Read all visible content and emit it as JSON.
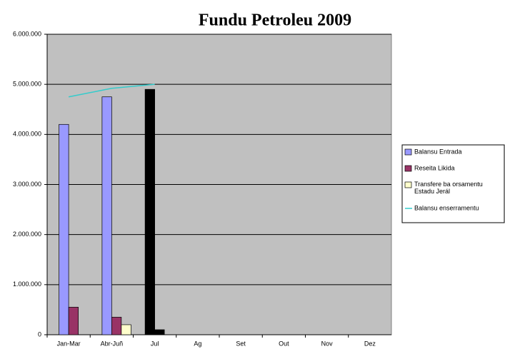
{
  "chart_data": {
    "type": "bar",
    "title": "Fundu Petroleu 2009",
    "categories": [
      "Jan-Mar",
      "Abr-Juñ",
      "Jul",
      "Ag",
      "Set",
      "Out",
      "Nov",
      "Dez"
    ],
    "series": [
      {
        "name": "Balansu Entrada",
        "color": "#9999ff",
        "colors": [
          "#9999ff",
          "#9999ff",
          "#000000",
          "#9999ff",
          "#9999ff",
          "#9999ff",
          "#9999ff",
          "#9999ff"
        ],
        "values": [
          4200000,
          4750000,
          4900000,
          null,
          null,
          null,
          null,
          null
        ]
      },
      {
        "name": "Reseita Likida",
        "color": "#993366",
        "colors": [
          "#993366",
          "#993366",
          "#000000",
          "#993366",
          "#993366",
          "#993366",
          "#993366",
          "#993366"
        ],
        "values": [
          550000,
          350000,
          100000,
          null,
          null,
          null,
          null,
          null
        ]
      },
      {
        "name": "Transfere ba orsamentu Estadu Jerál",
        "color": "#ffffcc",
        "colors": [
          "#ffffcc",
          "#ffffcc",
          "#ffffcc",
          "#ffffcc",
          "#ffffcc",
          "#ffffcc",
          "#ffffcc",
          "#ffffcc"
        ],
        "values": [
          0,
          200000,
          0,
          null,
          null,
          null,
          null,
          null
        ]
      },
      {
        "name": "Balansu enserramentu",
        "type": "line",
        "color": "#33cccc",
        "values": [
          4750000,
          4920000,
          5000000,
          null,
          null,
          null,
          null,
          null
        ]
      }
    ],
    "ylim": [
      0,
      6000000
    ],
    "yticks": [
      0,
      {
        "value": 1000000,
        "label": "1.000.000"
      },
      {
        "value": 2000000,
        "label": "2.000.000"
      },
      {
        "value": 3000000,
        "label": "3.000.000"
      },
      {
        "value": 4000000,
        "label": "4.000.000"
      },
      {
        "value": 5000000,
        "label": "5.000.000"
      },
      {
        "value": 6000000,
        "label": "6.000.000"
      }
    ],
    "grid": true,
    "plot_background": "#c0c0c0",
    "legend": "right"
  }
}
